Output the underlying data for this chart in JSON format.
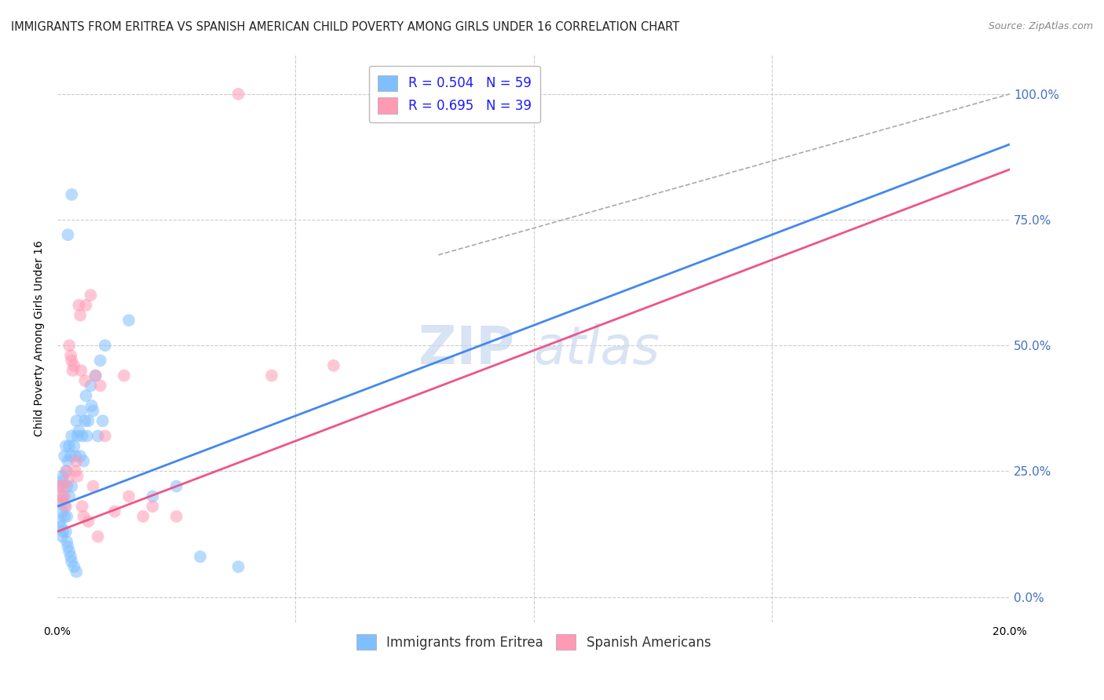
{
  "title": "IMMIGRANTS FROM ERITREA VS SPANISH AMERICAN CHILD POVERTY AMONG GIRLS UNDER 16 CORRELATION CHART",
  "source": "Source: ZipAtlas.com",
  "ylabel": "Child Poverty Among Girls Under 16",
  "ytick_values": [
    0,
    25,
    50,
    75,
    100
  ],
  "xlim": [
    0,
    20
  ],
  "ylim": [
    -5,
    108
  ],
  "legend_entries": [
    {
      "label": "R = 0.504   N = 59",
      "color": "#7fbfff"
    },
    {
      "label": "R = 0.695   N = 39",
      "color": "#ff9ab5"
    }
  ],
  "watermark_top": "ZIP",
  "watermark_bot": "atlas",
  "blue_color": "#7fbfff",
  "pink_color": "#ff9ab5",
  "blue_line_x0": 0,
  "blue_line_x1": 20,
  "blue_line_y0": 18,
  "blue_line_y1": 90,
  "pink_line_x0": 0,
  "pink_line_x1": 20,
  "pink_line_y0": 13,
  "pink_line_y1": 85,
  "dash_line_x0": 8,
  "dash_line_x1": 20,
  "dash_line_y0": 68,
  "dash_line_y1": 100,
  "blue_scatter": [
    [
      0.05,
      22
    ],
    [
      0.08,
      19
    ],
    [
      0.1,
      23
    ],
    [
      0.1,
      17
    ],
    [
      0.12,
      20
    ],
    [
      0.12,
      24
    ],
    [
      0.15,
      18
    ],
    [
      0.15,
      28
    ],
    [
      0.18,
      25
    ],
    [
      0.18,
      30
    ],
    [
      0.2,
      22
    ],
    [
      0.2,
      16
    ],
    [
      0.22,
      27
    ],
    [
      0.25,
      20
    ],
    [
      0.25,
      30
    ],
    [
      0.28,
      28
    ],
    [
      0.3,
      22
    ],
    [
      0.3,
      32
    ],
    [
      0.35,
      30
    ],
    [
      0.38,
      28
    ],
    [
      0.4,
      35
    ],
    [
      0.42,
      32
    ],
    [
      0.45,
      33
    ],
    [
      0.48,
      28
    ],
    [
      0.5,
      37
    ],
    [
      0.52,
      32
    ],
    [
      0.55,
      27
    ],
    [
      0.58,
      35
    ],
    [
      0.6,
      40
    ],
    [
      0.62,
      32
    ],
    [
      0.65,
      35
    ],
    [
      0.7,
      42
    ],
    [
      0.72,
      38
    ],
    [
      0.75,
      37
    ],
    [
      0.8,
      44
    ],
    [
      0.85,
      32
    ],
    [
      0.9,
      47
    ],
    [
      0.95,
      35
    ],
    [
      1.0,
      50
    ],
    [
      0.05,
      15
    ],
    [
      0.08,
      14
    ],
    [
      0.1,
      12
    ],
    [
      0.12,
      13
    ],
    [
      0.15,
      16
    ],
    [
      0.18,
      13
    ],
    [
      0.2,
      11
    ],
    [
      0.22,
      10
    ],
    [
      0.25,
      9
    ],
    [
      0.28,
      8
    ],
    [
      0.3,
      7
    ],
    [
      0.35,
      6
    ],
    [
      0.4,
      5
    ],
    [
      0.22,
      72
    ],
    [
      0.3,
      80
    ],
    [
      1.5,
      55
    ],
    [
      2.0,
      20
    ],
    [
      2.5,
      22
    ],
    [
      3.0,
      8
    ],
    [
      3.8,
      6
    ]
  ],
  "pink_scatter": [
    [
      0.05,
      22
    ],
    [
      0.08,
      20
    ],
    [
      0.1,
      19
    ],
    [
      0.12,
      22
    ],
    [
      0.15,
      20
    ],
    [
      0.18,
      18
    ],
    [
      0.2,
      25
    ],
    [
      0.22,
      23
    ],
    [
      0.25,
      50
    ],
    [
      0.28,
      48
    ],
    [
      0.3,
      47
    ],
    [
      0.32,
      45
    ],
    [
      0.35,
      46
    ],
    [
      0.38,
      25
    ],
    [
      0.4,
      27
    ],
    [
      0.42,
      24
    ],
    [
      0.45,
      58
    ],
    [
      0.48,
      56
    ],
    [
      0.5,
      45
    ],
    [
      0.52,
      18
    ],
    [
      0.55,
      16
    ],
    [
      0.58,
      43
    ],
    [
      0.6,
      58
    ],
    [
      0.65,
      15
    ],
    [
      0.7,
      60
    ],
    [
      0.75,
      22
    ],
    [
      0.8,
      44
    ],
    [
      0.85,
      12
    ],
    [
      0.9,
      42
    ],
    [
      1.0,
      32
    ],
    [
      1.2,
      17
    ],
    [
      1.4,
      44
    ],
    [
      1.5,
      20
    ],
    [
      1.8,
      16
    ],
    [
      2.0,
      18
    ],
    [
      2.5,
      16
    ],
    [
      3.8,
      100
    ],
    [
      4.5,
      44
    ],
    [
      5.8,
      46
    ]
  ],
  "title_fontsize": 10.5,
  "axis_label_fontsize": 10,
  "tick_fontsize": 10,
  "legend_fontsize": 12,
  "watermark_fontsize": 48,
  "watermark_color": "#c8d8f0",
  "background_color": "#ffffff",
  "grid_color": "#cccccc",
  "right_tick_color": "#4472c4",
  "source_fontsize": 9,
  "legend_text_color": "#1a1aff"
}
